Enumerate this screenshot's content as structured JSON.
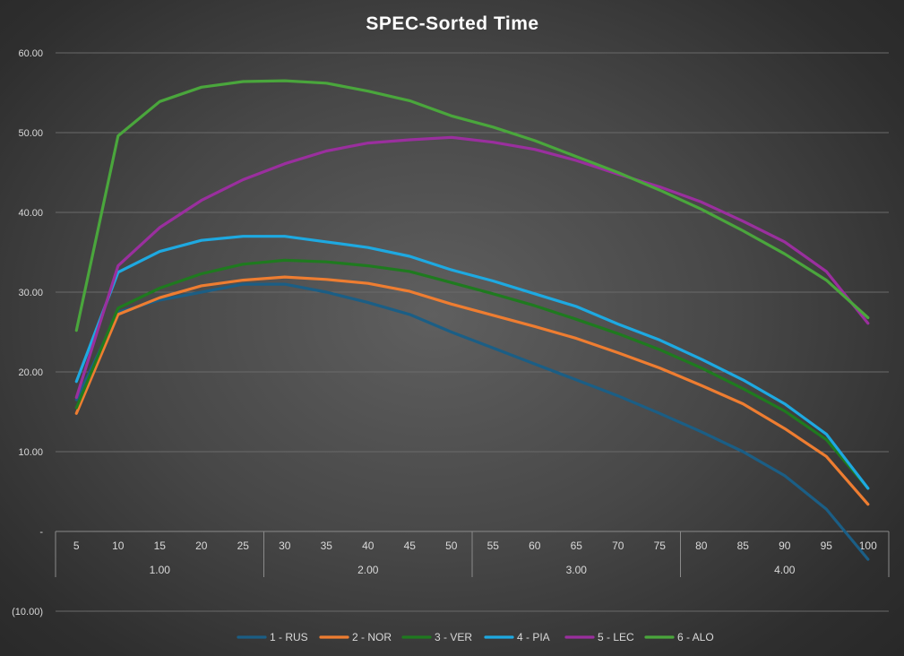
{
  "chart_data": {
    "type": "line",
    "title": "SPEC-Sorted Time",
    "xlabel": "",
    "ylabel": "",
    "ylim": [
      -10,
      60
    ],
    "y_ticks": [
      -10,
      0,
      10,
      20,
      30,
      40,
      50,
      60
    ],
    "y_tick_labels": [
      "(10.00)",
      "-",
      "10.00",
      "20.00",
      "30.00",
      "40.00",
      "50.00",
      "60.00"
    ],
    "grid": true,
    "legend_position": "bottom",
    "x": [
      5,
      10,
      15,
      20,
      25,
      30,
      35,
      40,
      45,
      50,
      55,
      60,
      65,
      70,
      75,
      80,
      85,
      90,
      95,
      100
    ],
    "x_tick_labels": [
      "5",
      "10",
      "15",
      "20",
      "25",
      "30",
      "35",
      "40",
      "45",
      "50",
      "55",
      "60",
      "65",
      "70",
      "75",
      "80",
      "85",
      "90",
      "95",
      "100"
    ],
    "x_groups": [
      {
        "label": "1.00",
        "count": 5
      },
      {
        "label": "2.00",
        "count": 5
      },
      {
        "label": "3.00",
        "count": 5
      },
      {
        "label": "4.00",
        "count": 5
      }
    ],
    "series": [
      {
        "name": "1 - RUS",
        "color": "#1b5e85",
        "values": [
          16.5,
          27.5,
          29.0,
          30.0,
          31.0,
          31.0,
          30.0,
          28.7,
          27.2,
          25.0,
          23.0,
          21.0,
          19.0,
          17.0,
          14.8,
          12.5,
          10.0,
          7.0,
          2.8,
          -3.5
        ]
      },
      {
        "name": "2 - NOR",
        "color": "#ee7d31",
        "values": [
          14.8,
          27.2,
          29.3,
          30.8,
          31.5,
          31.9,
          31.6,
          31.1,
          30.1,
          28.5,
          27.1,
          25.7,
          24.2,
          22.4,
          20.5,
          18.3,
          16.0,
          12.9,
          9.4,
          3.4
        ]
      },
      {
        "name": "3 - VER",
        "color": "#1f7a1f",
        "values": [
          15.5,
          28.0,
          30.5,
          32.3,
          33.5,
          34.0,
          33.8,
          33.3,
          32.6,
          31.2,
          29.8,
          28.3,
          26.6,
          24.8,
          22.8,
          20.5,
          17.9,
          15.1,
          11.5,
          5.4
        ]
      },
      {
        "name": "4 - PIA",
        "color": "#1ea9e1",
        "values": [
          18.8,
          32.5,
          35.1,
          36.5,
          37.0,
          37.0,
          36.3,
          35.6,
          34.5,
          32.8,
          31.4,
          29.8,
          28.2,
          26.0,
          24.0,
          21.6,
          19.0,
          16.0,
          12.2,
          5.4
        ]
      },
      {
        "name": "5 - LEC",
        "color": "#9a2f9e",
        "values": [
          16.8,
          33.3,
          38.1,
          41.5,
          44.1,
          46.1,
          47.7,
          48.7,
          49.1,
          49.4,
          48.8,
          47.9,
          46.5,
          44.8,
          43.2,
          41.3,
          38.9,
          36.3,
          32.6,
          26.1
        ]
      },
      {
        "name": "6 - ALO",
        "color": "#4aa63c",
        "values": [
          25.2,
          49.6,
          53.9,
          55.7,
          56.4,
          56.5,
          56.2,
          55.2,
          54.0,
          52.1,
          50.7,
          49.0,
          47.0,
          45.0,
          42.8,
          40.4,
          37.7,
          34.8,
          31.5,
          26.8
        ]
      }
    ]
  }
}
